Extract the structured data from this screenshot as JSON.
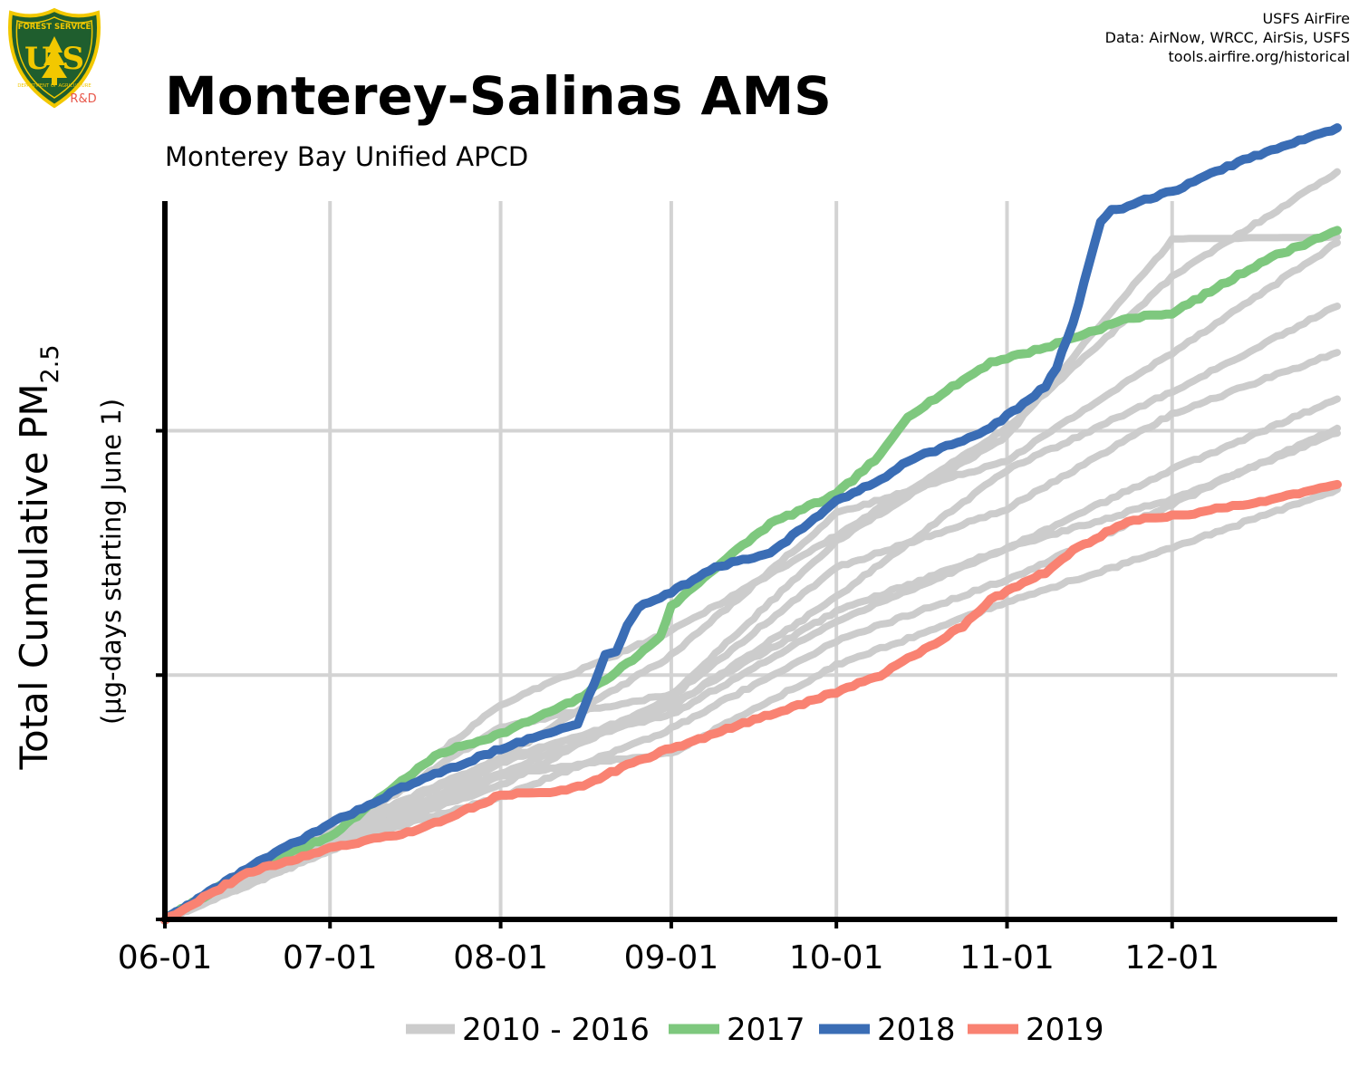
{
  "header": {
    "title": "Monterey-Salinas AMS",
    "subtitle": "Monterey Bay Unified APCD",
    "credits": [
      "USFS AirFire",
      "Data: AirNow, WRCC, AirSis, USFS",
      "tools.airfire.org/historical"
    ]
  },
  "logo": {
    "top_text": "FOREST SERVICE",
    "letters": "U S",
    "bottom_text": "DEPARTMENT OF AGRICULTURE",
    "badge": "R&D",
    "colors": {
      "shield": "#1f5e2e",
      "rim": "#f2c800",
      "badge": "#e8574a"
    }
  },
  "chart_data": {
    "type": "line",
    "title": "Monterey-Salinas AMS",
    "subtitle": "Monterey Bay Unified APCD",
    "ylabel": "Total Cumulative PM",
    "ylabel_sub": "2.5",
    "ylabel_note": "(µg-days starting June 1)",
    "x_ticks": [
      "06-01",
      "07-01",
      "08-01",
      "09-01",
      "10-01",
      "11-01",
      "12-01"
    ],
    "x_tick_days": [
      0,
      30,
      61,
      92,
      122,
      153,
      183
    ],
    "xlim": [
      0,
      213
    ],
    "ylim": [
      0,
      1470
    ],
    "y_gridlines": [
      0,
      500,
      1000,
      1500
    ],
    "y_tick_labels": false,
    "grid": true,
    "legend_position": "bottom",
    "legend": [
      "2010 - 2016",
      "2017",
      "2018",
      "2019"
    ],
    "colors": {
      "history": "#cccccc",
      "2017": "#7ec87e",
      "2018": "#3a6db5",
      "2019": "#f98272"
    },
    "history_years": "2010 - 2016",
    "history_series": [
      {
        "days": [
          0,
          30,
          61,
          92,
          122,
          153,
          183,
          213
        ],
        "values": [
          0,
          165,
          440,
          590,
          785,
          1005,
          1315,
          1530
        ]
      },
      {
        "days": [
          0,
          30,
          61,
          92,
          122,
          153,
          183,
          213
        ],
        "values": [
          0,
          180,
          330,
          540,
          830,
          940,
          1160,
          1385
        ]
      },
      {
        "days": [
          0,
          30,
          61,
          92,
          122,
          153,
          183,
          213
        ],
        "values": [
          0,
          165,
          300,
          435,
          660,
          920,
          1080,
          1255
        ]
      },
      {
        "days": [
          0,
          30,
          61,
          92,
          122,
          153,
          183,
          213
        ],
        "values": [
          0,
          155,
          275,
          455,
          720,
          840,
          1035,
          1160
        ]
      },
      {
        "days": [
          0,
          30,
          61,
          92,
          122,
          153,
          183,
          213
        ],
        "values": [
          0,
          165,
          330,
          420,
          610,
          760,
          920,
          1065
        ]
      },
      {
        "days": [
          0,
          30,
          61,
          92,
          122,
          153,
          183,
          213
        ],
        "values": [
          0,
          150,
          250,
          390,
          570,
          695,
          850,
          1005
        ]
      },
      {
        "days": [
          0,
          30,
          61,
          92,
          122,
          153,
          183,
          213
        ],
        "values": [
          0,
          140,
          295,
          340,
          520,
          650,
          760,
          880
        ]
      },
      {
        "days": [
          0,
          30,
          61,
          92,
          122,
          153,
          183,
          213
        ],
        "values": [
          0,
          140,
          320,
          440,
          630,
          760,
          860,
          995
        ]
      },
      {
        "days": [
          0,
          30,
          61,
          92,
          122,
          153,
          183,
          213
        ],
        "values": [
          0,
          170,
          395,
          460,
          775,
          990,
          1390,
          1395
        ]
      }
    ],
    "series": [
      {
        "name": "2017",
        "days": [
          0,
          15,
          30,
          45,
          50,
          61,
          75,
          86,
          90,
          92,
          100,
          110,
          122,
          130,
          135,
          150,
          160,
          175,
          183,
          200,
          213
        ],
        "values": [
          0,
          100,
          170,
          300,
          340,
          380,
          450,
          540,
          580,
          640,
          720,
          810,
          870,
          950,
          1030,
          1140,
          1170,
          1230,
          1240,
          1350,
          1410
        ]
      },
      {
        "name": "2018",
        "days": [
          0,
          15,
          30,
          45,
          50,
          61,
          75,
          80,
          82,
          84,
          86,
          92,
          100,
          110,
          122,
          130,
          135,
          145,
          150,
          160,
          162,
          165,
          170,
          172,
          175,
          183,
          195,
          213
        ],
        "values": [
          0,
          105,
          195,
          280,
          300,
          350,
          400,
          540,
          550,
          600,
          640,
          670,
          720,
          750,
          855,
          900,
          940,
          980,
          1005,
          1090,
          1130,
          1220,
          1430,
          1450,
          1460,
          1490,
          1550,
          1620
        ]
      },
      {
        "name": "2019",
        "days": [
          0,
          15,
          30,
          45,
          50,
          61,
          70,
          75,
          86,
          92,
          105,
          122,
          130,
          145,
          150,
          160,
          165,
          175,
          183,
          200,
          213
        ],
        "values": [
          0,
          95,
          145,
          180,
          200,
          255,
          260,
          270,
          325,
          350,
          400,
          465,
          500,
          600,
          655,
          710,
          755,
          815,
          825,
          855,
          890
        ]
      }
    ]
  }
}
